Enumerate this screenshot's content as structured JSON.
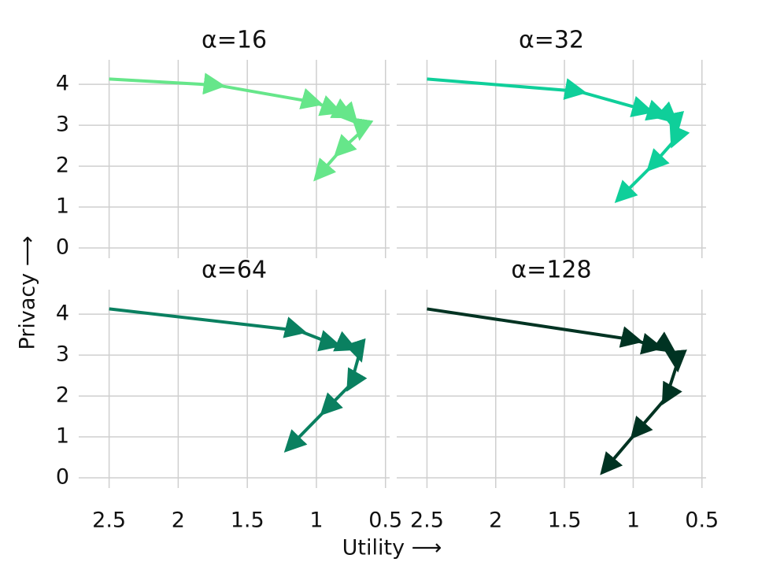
{
  "xlabel": "Utility ⟶",
  "ylabel": "Privacy ⟶",
  "chart_data": [
    {
      "type": "line",
      "title": "α=16",
      "color": "#66e68a",
      "x": [
        2.5,
        1.72,
        1.01,
        0.87,
        0.78,
        0.74,
        0.68,
        0.83,
        0.98
      ],
      "values": [
        4.13,
        3.98,
        3.56,
        3.37,
        3.27,
        3.17,
        2.83,
        2.37,
        1.79
      ],
      "xlim": [
        2.72,
        0.47
      ],
      "ylim": [
        -0.25,
        4.6
      ],
      "xticks": [
        2.5,
        2,
        1.5,
        1,
        0.5
      ],
      "yticks": [
        0,
        1,
        2,
        3,
        4
      ],
      "grid": true
    },
    {
      "type": "line",
      "title": "α=32",
      "color": "#0fcf9a",
      "x": [
        2.5,
        1.4,
        0.91,
        0.8,
        0.72,
        0.69,
        0.7,
        0.86,
        1.09
      ],
      "values": [
        4.13,
        3.83,
        3.37,
        3.27,
        3.17,
        2.98,
        2.63,
        2.02,
        1.25
      ],
      "xlim": [
        2.72,
        0.47
      ],
      "ylim": [
        -0.25,
        4.6
      ],
      "xticks": [
        2.5,
        2,
        1.5,
        1,
        0.5
      ],
      "yticks": [
        0,
        1,
        2,
        3,
        4
      ],
      "grid": true
    },
    {
      "type": "line",
      "title": "α=64",
      "color": "#0a8060",
      "x": [
        2.5,
        1.13,
        0.88,
        0.76,
        0.69,
        0.75,
        0.93,
        1.19
      ],
      "values": [
        4.13,
        3.6,
        3.27,
        3.21,
        3.02,
        2.29,
        1.67,
        0.77
      ],
      "xlim": [
        2.72,
        0.47
      ],
      "ylim": [
        -0.25,
        4.6
      ],
      "xticks": [
        2.5,
        2,
        1.5,
        1,
        0.5
      ],
      "yticks": [
        0,
        1,
        2,
        3,
        4
      ],
      "grid": true
    },
    {
      "type": "line",
      "title": "α=128",
      "color": "#003322",
      "x": [
        2.5,
        0.99,
        0.84,
        0.74,
        0.68,
        0.76,
        0.98,
        1.2
      ],
      "values": [
        4.13,
        3.37,
        3.21,
        3.17,
        2.79,
        1.96,
        1.1,
        0.23
      ],
      "xlim": [
        2.72,
        0.47
      ],
      "ylim": [
        -0.25,
        4.6
      ],
      "xticks": [
        2.5,
        2,
        1.5,
        1,
        0.5
      ],
      "yticks": [
        0,
        1,
        2,
        3,
        4
      ],
      "grid": true
    }
  ]
}
